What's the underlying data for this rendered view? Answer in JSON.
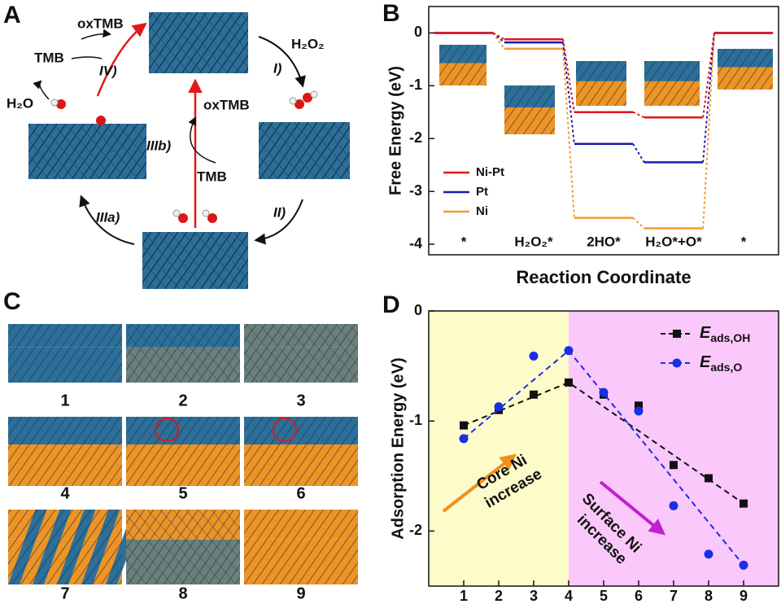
{
  "panel_a": {
    "label": "A",
    "texts": [
      "oxTMB",
      "TMB",
      "IV)",
      "H₂O₂",
      "I)",
      "H₂O",
      "IIIb)",
      "oxTMB",
      "TMB",
      "II)",
      "IIIa)"
    ]
  },
  "panel_c": {
    "label": "C",
    "structures": [
      "1",
      "2",
      "3",
      "4",
      "5",
      "6",
      "7",
      "8",
      "9"
    ]
  },
  "chart_data": [
    {
      "panel": "B",
      "type": "step",
      "ylabel": "Free Energy (eV)",
      "xlabel": "Reaction Coordinate",
      "categories": [
        "*",
        "H₂O₂*",
        "2HO*",
        "H₂O*+O*",
        "*"
      ],
      "series": [
        {
          "name": "Ni-Pt",
          "color": "#e0141e",
          "values": [
            0,
            -0.12,
            -1.5,
            -1.6,
            0
          ]
        },
        {
          "name": "Pt",
          "color": "#1a1ab4",
          "values": [
            0,
            -0.18,
            -2.1,
            -2.45,
            0
          ]
        },
        {
          "name": "Ni",
          "color": "#f39a2e",
          "values": [
            0,
            -0.3,
            -3.5,
            -3.7,
            0
          ]
        }
      ],
      "ylim": [
        -4.2,
        0.5
      ],
      "yticks": [
        0,
        -1,
        -2,
        -3,
        -4
      ]
    },
    {
      "panel": "D",
      "type": "scatter",
      "ylabel": "Adsorption Energy (eV)",
      "x": [
        1,
        2,
        3,
        4,
        5,
        6,
        7,
        8,
        9
      ],
      "series": [
        {
          "name": "Eads,OH",
          "color": "#111111",
          "marker": "square",
          "values": [
            -1.04,
            -0.9,
            -0.76,
            -0.65,
            -0.76,
            -0.86,
            -1.4,
            -1.52,
            -1.75
          ]
        },
        {
          "name": "Eads,O",
          "color": "#1a2ee6",
          "marker": "circle",
          "values": [
            -1.16,
            -0.87,
            -0.41,
            -0.36,
            -0.74,
            -0.91,
            -1.77,
            -2.21,
            -2.31
          ]
        }
      ],
      "xlim": [
        0,
        10
      ],
      "xticks": [
        1,
        2,
        3,
        4,
        5,
        6,
        7,
        8,
        9
      ],
      "ylim": [
        -2.5,
        0
      ],
      "yticks": [
        0,
        -1,
        -2
      ],
      "regions": [
        {
          "xlim": [
            0,
            4
          ],
          "color": "#fdfbc9"
        },
        {
          "xlim": [
            4,
            10
          ],
          "color": "#fbc8fb"
        }
      ],
      "annotations": [
        {
          "lines": [
            "Core Ni",
            "increase"
          ],
          "color": "#f0901e"
        },
        {
          "lines": [
            "Surface Ni",
            "increase"
          ],
          "color": "#c020d0"
        }
      ]
    }
  ]
}
